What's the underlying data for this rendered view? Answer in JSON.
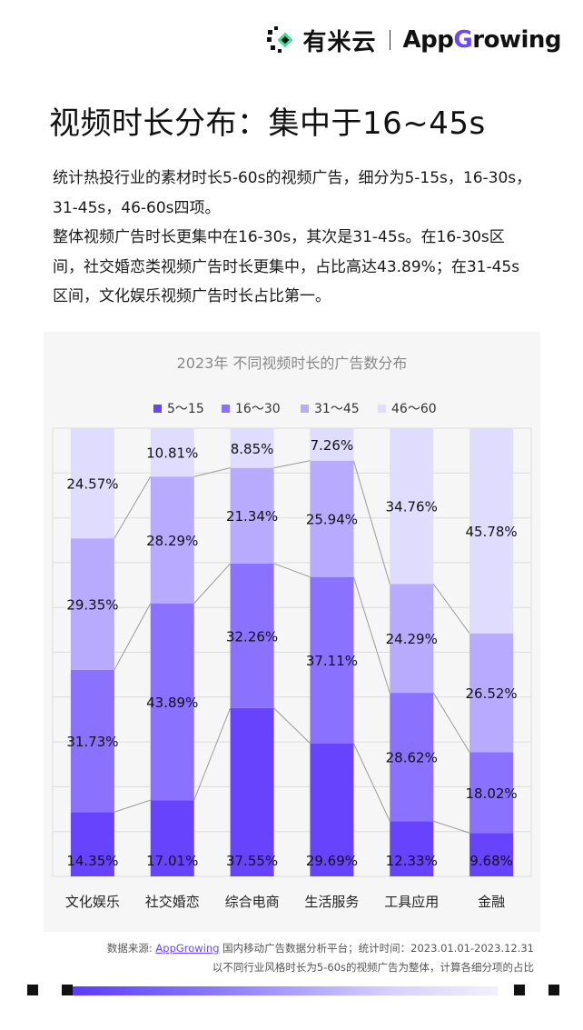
{
  "header": {
    "brand1": "有米云",
    "brand2_prefix": "App",
    "brand2_g": "G",
    "brand2_suffix": "rowing"
  },
  "title": "视频时长分布：集中于16~45s",
  "description": [
    "统计热投行业的素材时长5-60s的视频广告，细分为5-15s，16-30s，31-45s，46-60s四项。",
    "整体视频广告时长更集中在16-30s，其次是31-45s。在16-30s区间，社交婚恋类视频广告时长更集中，占比高达43.89%；在31-45s区间，文化娱乐视频广告时长占比第一。"
  ],
  "chart_data": {
    "type": "bar",
    "stacked": true,
    "percent": true,
    "title": "2023年 不同视频时长的广告数分布",
    "categories": [
      "文化娱乐",
      "社交婚恋",
      "综合电商",
      "生活服务",
      "工具应用",
      "金融"
    ],
    "series": [
      {
        "name": "5～15",
        "color": "#6843fd",
        "values": [
          14.35,
          17.01,
          37.55,
          29.69,
          12.33,
          9.68
        ]
      },
      {
        "name": "16～30",
        "color": "#8a71ff",
        "values": [
          31.73,
          43.89,
          32.26,
          37.11,
          28.62,
          18.02
        ]
      },
      {
        "name": "31～45",
        "color": "#b8abff",
        "values": [
          29.35,
          28.29,
          21.34,
          25.94,
          24.29,
          26.52
        ]
      },
      {
        "name": "46～60",
        "color": "#e0dcfd",
        "values": [
          24.57,
          10.81,
          8.85,
          7.26,
          34.76,
          45.78
        ]
      }
    ],
    "data_labels": [
      [
        "14.35%",
        "17.01%",
        "37.55%",
        "29.69%",
        "12.33%",
        "9.68%"
      ],
      [
        "31.73%",
        "43.89%",
        "32.26%",
        "37.11%",
        "28.62%",
        "18.02%"
      ],
      [
        "29.35%",
        "28.29%",
        "21.34%",
        "25.94%",
        "24.29%",
        "26.52%"
      ],
      [
        "24.57%",
        "10.81%",
        "8.85%",
        "7.26%",
        "34.76%",
        "45.78%"
      ]
    ],
    "ylim": [
      0,
      100
    ],
    "grid": true,
    "legend": "top",
    "connector_lines": true
  },
  "source": {
    "line1_prefix": "数据来源: ",
    "line1_link": "AppGrowing",
    "line1_suffix": " 国内移动广告数据分析平台；统计时间：2023.01.01-2023.12.31",
    "line2": "以不同行业风格时长为5-60s的视频广告为整体，计算各细分项的占比"
  }
}
